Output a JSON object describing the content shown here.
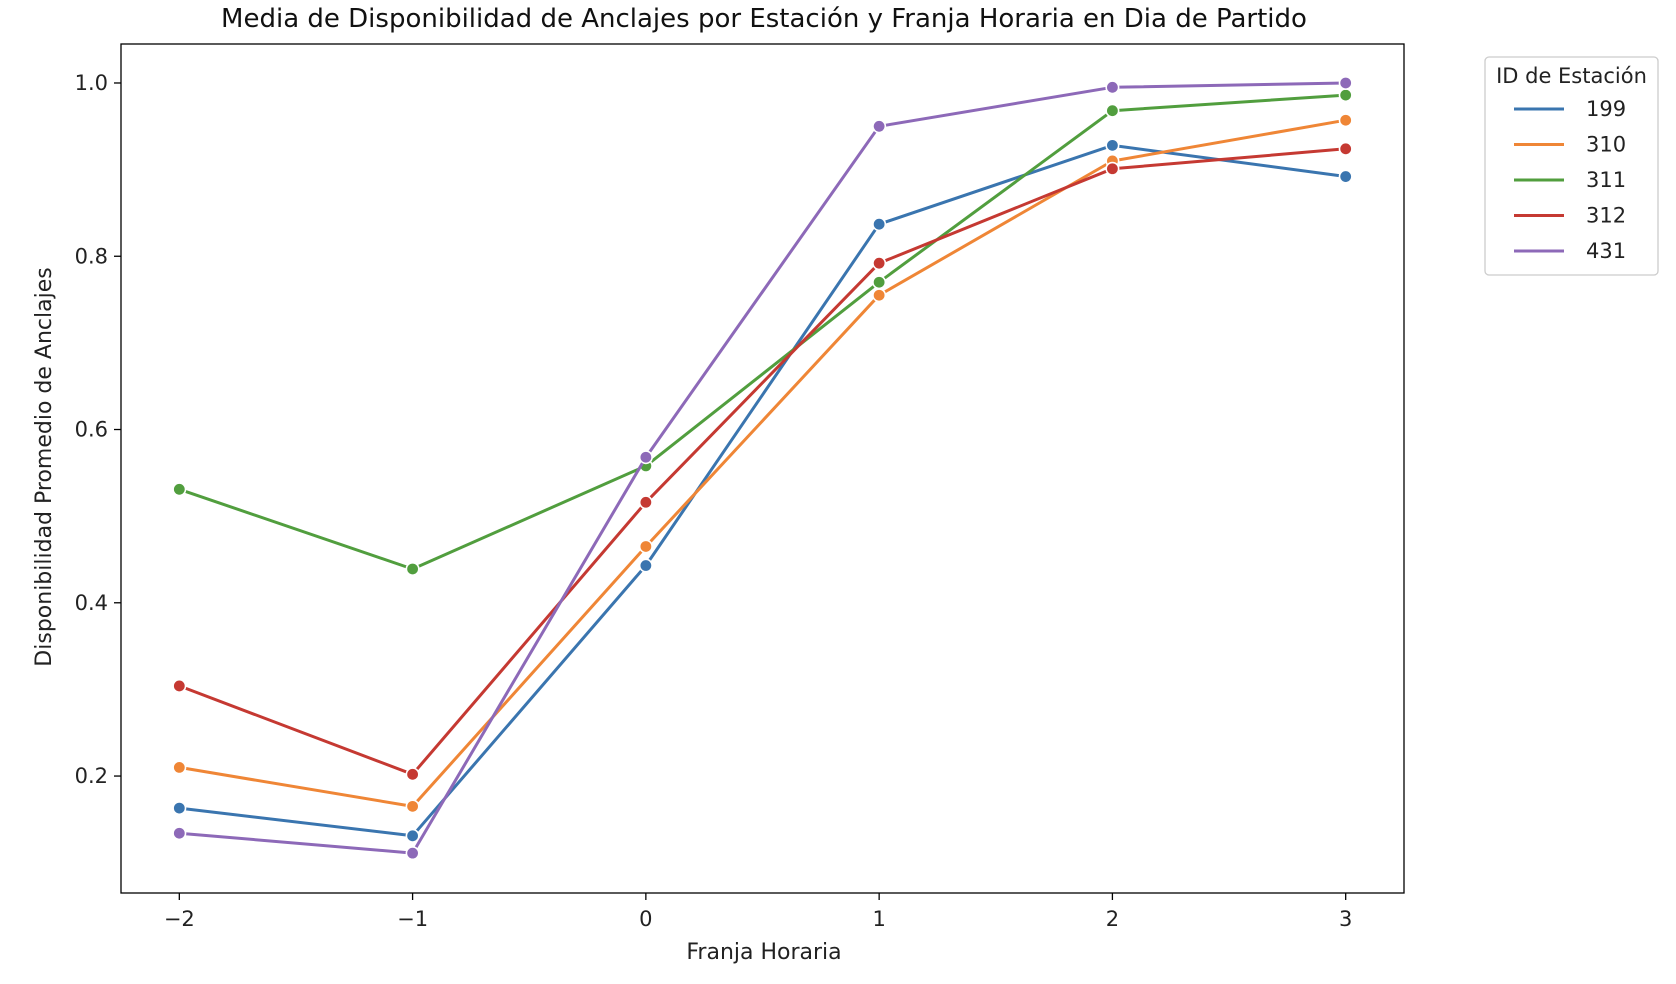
{
  "chart_data": {
    "type": "line",
    "title": "Media de Disponibilidad de Anclajes por Estación y Franja Horaria en Dia de Partido",
    "xlabel": "Franja Horaria",
    "ylabel": "Disponibilidad Promedio de Anclajes",
    "x": [
      -2,
      -1,
      0,
      1,
      2,
      3
    ],
    "x_tick_labels": [
      "−2",
      "−1",
      "0",
      "1",
      "2",
      "3"
    ],
    "y_ticks": [
      0.2,
      0.4,
      0.6,
      0.8,
      1.0
    ],
    "y_tick_labels": [
      "0.2",
      "0.4",
      "0.6",
      "0.8",
      "1.0"
    ],
    "xlim": [
      -2.25,
      3.25
    ],
    "ylim": [
      0.065,
      1.045
    ],
    "grid": false,
    "legend": {
      "title": "ID de Estación",
      "placement": "outside-right-top"
    },
    "series": [
      {
        "name": "199",
        "color": "#3a75af",
        "values": [
          0.163,
          0.131,
          0.443,
          0.837,
          0.928,
          0.892
        ]
      },
      {
        "name": "310",
        "color": "#ef8636",
        "values": [
          0.21,
          0.165,
          0.465,
          0.755,
          0.91,
          0.957
        ]
      },
      {
        "name": "311",
        "color": "#519e3e",
        "values": [
          0.531,
          0.439,
          0.558,
          0.77,
          0.968,
          0.986
        ]
      },
      {
        "name": "312",
        "color": "#c53932",
        "values": [
          0.304,
          0.202,
          0.516,
          0.792,
          0.901,
          0.924
        ]
      },
      {
        "name": "431",
        "color": "#8d69b8",
        "values": [
          0.134,
          0.111,
          0.568,
          0.95,
          0.995,
          1.0
        ]
      }
    ]
  }
}
